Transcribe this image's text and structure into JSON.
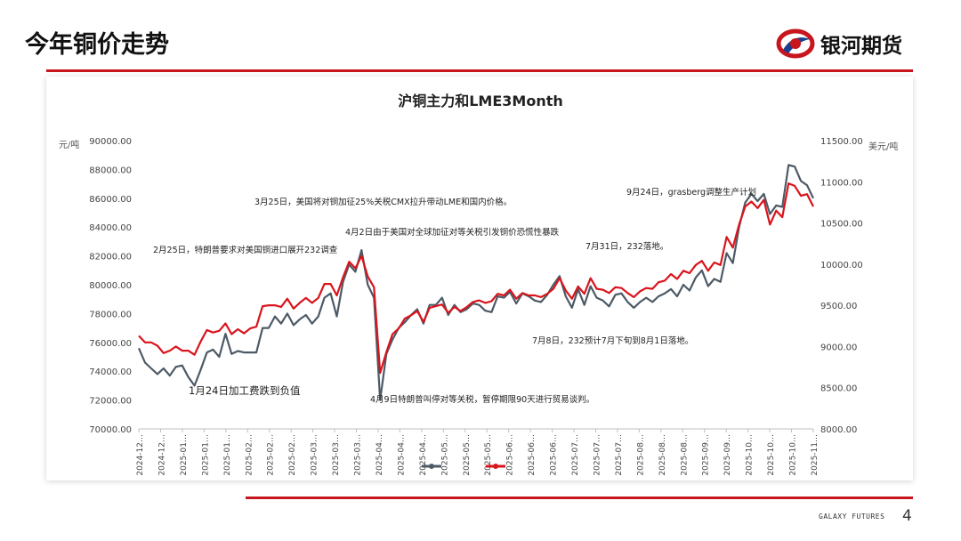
{
  "header": {
    "title": "今年铜价走势",
    "logo_text": "银河期货"
  },
  "footer": {
    "brand": "GALAXY FUTURES",
    "page_number": "4"
  },
  "colors": {
    "accent": "#c8161e",
    "series_1": "#4d5a66",
    "series_2": "#d9141c"
  },
  "chart_data": {
    "type": "line",
    "title": "沪铜主力和LME3Month",
    "y_left": {
      "unit": "元/吨",
      "range": [
        70000,
        90000
      ],
      "ticks": [
        "70000.00",
        "72000.00",
        "74000.00",
        "76000.00",
        "78000.00",
        "80000.00",
        "82000.00",
        "84000.00",
        "86000.00",
        "88000.00",
        "90000.00"
      ]
    },
    "y_right": {
      "unit": "美元/吨",
      "range": [
        8000,
        11500
      ],
      "ticks": [
        "8000.00",
        "8500.00",
        "9000.00",
        "9500.00",
        "10000.00",
        "10500.00",
        "11000.00",
        "11500.00"
      ]
    },
    "x_tick_labels": [
      "2024-12…",
      "2024-12…",
      "2025-01…",
      "2025-01…",
      "2025-01…",
      "2025-02…",
      "2025-02…",
      "2025-02…",
      "2025-03…",
      "2025-03…",
      "2025-03…",
      "2025-04…",
      "2025-04…",
      "2025-04…",
      "2025-05…",
      "2025-05…",
      "2025-05…",
      "2025-06…",
      "2025-06…",
      "2025-06…",
      "2025-07…",
      "2025-07…",
      "2025-07…",
      "2025-08…",
      "2025-08…",
      "2025-08…",
      "2025-09…",
      "2025-09…",
      "2025-10…",
      "2025-10…",
      "2025-10…",
      "2025-11…"
    ],
    "grid": false,
    "legend_position": "bottom",
    "series": [
      {
        "axis": "left",
        "values": [
          75600,
          74600,
          74200,
          73800,
          74200,
          73700,
          74300,
          74400,
          73600,
          73000,
          74100,
          75300,
          75500,
          75000,
          76600,
          75200,
          75400,
          75300,
          75300,
          75300,
          77000,
          77000,
          77800,
          77300,
          78000,
          77200,
          77600,
          77900,
          77300,
          77800,
          79100,
          79400,
          77800,
          80200,
          81400,
          80900,
          82400,
          80000,
          79100,
          72000,
          75200,
          76200,
          77000,
          77400,
          77900,
          78300,
          77300,
          78600,
          78600,
          79100,
          77900,
          78600,
          78100,
          78300,
          78700,
          78600,
          78200,
          78100,
          79200,
          79100,
          79500,
          78700,
          79400,
          79200,
          78900,
          78800,
          79300,
          80000,
          80600,
          79200,
          78400,
          79700,
          78600,
          79900,
          79100,
          78900,
          78500,
          79300,
          79400,
          78800,
          78400,
          78800,
          79100,
          78800,
          79200,
          79400,
          79700,
          79200,
          80000,
          79600,
          80500,
          81000,
          79900,
          80400,
          80200,
          82200,
          81500,
          84000,
          85700,
          86300,
          85800,
          86300,
          84900,
          85500,
          85400,
          88300,
          88200,
          87200,
          86900,
          86000
        ]
      },
      {
        "axis": "right",
        "values": [
          9130,
          9050,
          9050,
          9010,
          8920,
          8950,
          9000,
          8950,
          8950,
          8900,
          9060,
          9200,
          9170,
          9190,
          9280,
          9150,
          9210,
          9160,
          9220,
          9240,
          9490,
          9500,
          9500,
          9480,
          9580,
          9460,
          9530,
          9590,
          9530,
          9590,
          9760,
          9760,
          9620,
          9840,
          10030,
          9950,
          10100,
          9850,
          9720,
          8680,
          8930,
          9150,
          9220,
          9340,
          9380,
          9430,
          9300,
          9470,
          9490,
          9510,
          9410,
          9480,
          9430,
          9480,
          9540,
          9560,
          9530,
          9550,
          9640,
          9620,
          9690,
          9580,
          9650,
          9620,
          9620,
          9600,
          9640,
          9700,
          9830,
          9680,
          9580,
          9730,
          9640,
          9830,
          9700,
          9690,
          9650,
          9720,
          9710,
          9650,
          9600,
          9670,
          9710,
          9700,
          9780,
          9800,
          9880,
          9820,
          9920,
          9890,
          9990,
          10040,
          9920,
          10020,
          9990,
          10330,
          10200,
          10480,
          10700,
          10760,
          10680,
          10780,
          10480,
          10650,
          10570,
          10980,
          10950,
          10830,
          10850,
          10700
        ]
      }
    ],
    "annotations": [
      {
        "text": "3月25日，美国将对铜加征25%关税CMX拉升带动LME和国内价格。"
      },
      {
        "text": "9月24日，grasberg调整生产计划"
      },
      {
        "text": "4月2日由于美国对全球加征对等关税引发铜价恐慌性暴跌"
      },
      {
        "text": "7月31日，232落地。"
      },
      {
        "text": "2月25日，特朗普要求对美国铜进口展开232调查"
      },
      {
        "text": "7月8日，232预计7月下旬到8月1日落地。"
      },
      {
        "text": "1月24日加工费跌到负值"
      },
      {
        "text": "4月9日特朗普叫停对等关税，暂停期限90天进行贸易谈判。"
      }
    ]
  }
}
